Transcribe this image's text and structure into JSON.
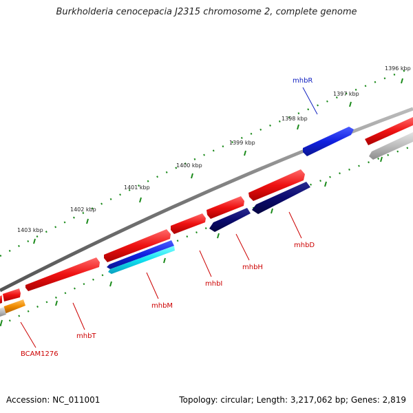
{
  "title": "Burkholderia cenocepacia J2315 chromosome 2, complete genome",
  "footer": {
    "accession": "Accession: NC_011001",
    "summary": "Topology: circular; Length: 3,217,062 bp; Genes: 2,819"
  },
  "ruler": {
    "ticks": [
      "1396 kbp",
      "1397 kbp",
      "1398 kbp",
      "1399 kbp",
      "1400 kbp",
      "1401 kbp",
      "1402 kbp",
      "1403 kbp"
    ]
  },
  "genes": {
    "labels": [
      "mhbR",
      "mhbD",
      "mhbH",
      "mhbI",
      "mhbM",
      "mhbT",
      "BCAM1276"
    ]
  },
  "colors": {
    "forward_gene": "#e01010",
    "reverse_gene_blue": "#0a1cd8",
    "reverse_gene_navy": "#0a0a6e",
    "reverse_gene_cyan": "#10e0f0",
    "orange_gene": "#f08c00",
    "grey_gene": "#bbbbbb",
    "backbone": "#777777",
    "ruler_dots": "#1a8a1a",
    "label_red": "#cc0000",
    "label_blue": "#1020c0"
  }
}
